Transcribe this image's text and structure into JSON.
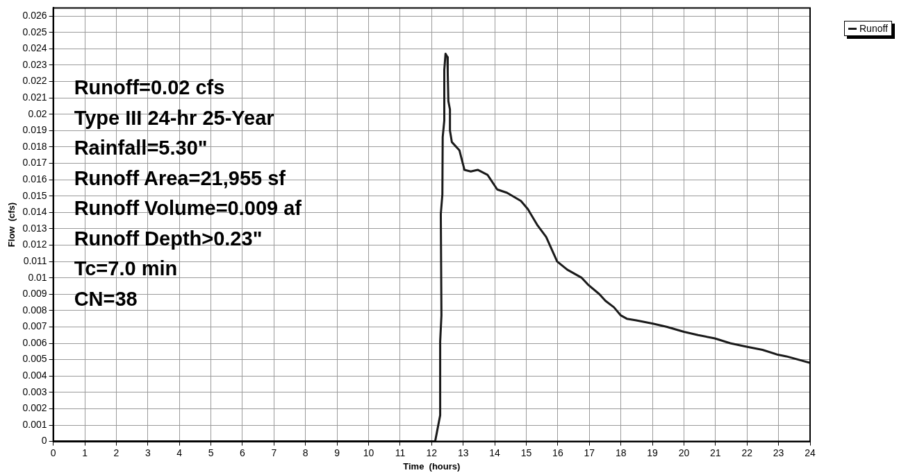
{
  "chart_data": {
    "type": "line",
    "xlabel": "Time  (hours)",
    "ylabel": "Flow  (cfs)",
    "x": [
      0,
      12.11,
      12.27,
      12.27,
      12.31,
      12.29,
      12.34,
      12.35,
      12.4,
      12.4,
      12.44,
      12.5,
      12.51,
      12.53,
      12.58,
      12.58,
      12.64,
      12.88,
      13.04,
      13.24,
      13.46,
      13.77,
      14.08,
      14.39,
      14.83,
      15.05,
      15.36,
      15.63,
      15.98,
      16.3,
      16.76,
      16.95,
      17.32,
      17.51,
      17.78,
      18.0,
      18.19,
      18.49,
      19.02,
      19.47,
      20.0,
      20.45,
      20.98,
      21.47,
      21.96,
      22.49,
      22.98,
      23.25,
      24.0
    ],
    "series": [
      {
        "name": "Runoff",
        "color": "#1a1a1a",
        "values": [
          0,
          0,
          0.0016,
          0.0061,
          0.0077,
          0.0139,
          0.0151,
          0.0186,
          0.0196,
          0.0227,
          0.0237,
          0.0235,
          0.0225,
          0.0208,
          0.0203,
          0.019,
          0.0183,
          0.0178,
          0.0166,
          0.0165,
          0.0166,
          0.0163,
          0.0154,
          0.0152,
          0.0147,
          0.0142,
          0.0132,
          0.0125,
          0.011,
          0.0105,
          0.01,
          0.0096,
          0.009,
          0.0086,
          0.0082,
          0.0077,
          0.0075,
          0.0074,
          0.0072,
          0.007,
          0.0067,
          0.0065,
          0.0063,
          0.006,
          0.0058,
          0.0056,
          0.0053,
          0.0052,
          0.0048
        ]
      }
    ],
    "xlim": [
      0,
      24
    ],
    "xticks": [
      0,
      1,
      2,
      3,
      4,
      5,
      6,
      7,
      8,
      9,
      10,
      11,
      12,
      13,
      14,
      15,
      16,
      17,
      18,
      19,
      20,
      21,
      22,
      23,
      24
    ],
    "ylim": [
      0,
      0.0265
    ],
    "yticks": [
      0,
      0.001,
      0.002,
      0.003,
      0.004,
      0.005,
      0.006,
      0.007,
      0.008,
      0.009,
      0.01,
      0.011,
      0.012,
      0.013,
      0.014,
      0.015,
      0.016,
      0.017,
      0.018,
      0.019,
      0.02,
      0.021,
      0.022,
      0.023,
      0.024,
      0.025,
      0.026
    ],
    "grid": true,
    "legend": "top right",
    "marker": "none",
    "line_style": "solid",
    "annotations": [
      "Runoff=0.02 cfs",
      "Type III 24-hr 25-Year",
      "Rainfall=5.30\"",
      "Runoff Area=21,955 sf",
      "Runoff Volume=0.009 af",
      "Runoff Depth>0.23\"",
      "Tc=7.0 min",
      "CN=38"
    ]
  }
}
